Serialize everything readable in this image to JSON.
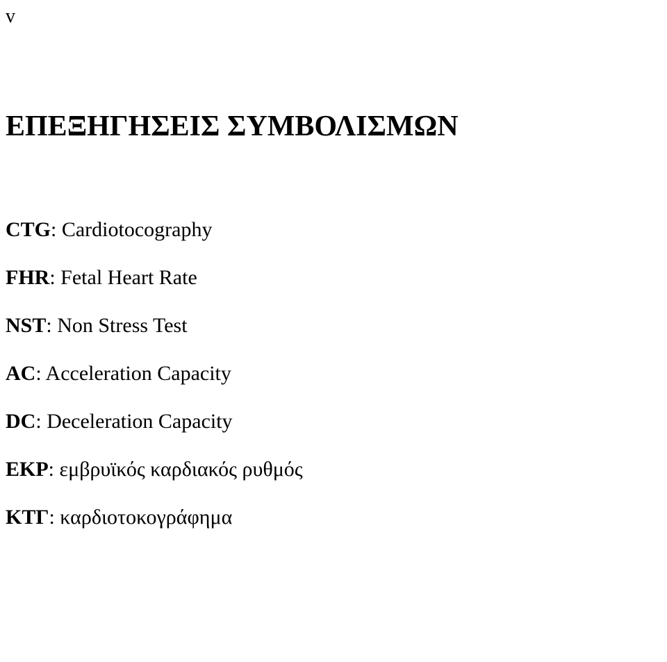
{
  "page": {
    "number": "v",
    "heading": "ΕΠΕΞΗΓΗΣΕΙΣ ΣΥΜΒΟΛΙΣΜΩΝ",
    "definitions": [
      {
        "abbr": "CTG",
        "sep": ": ",
        "desc": "Cardiotocography"
      },
      {
        "abbr": "FHR",
        "sep": ": ",
        "desc": "Fetal Heart Rate"
      },
      {
        "abbr": "NST",
        "sep": ": ",
        "desc": "Non Stress Test"
      },
      {
        "abbr": "AC",
        "sep": ": ",
        "desc": "Acceleration Capacity"
      },
      {
        "abbr": "DC",
        "sep": ": ",
        "desc": "Deceleration Capacity"
      },
      {
        "abbr": "EKP",
        "sep": ": ",
        "desc": "εμβρυϊκός καρδιακός ρυθμός"
      },
      {
        "abbr": "ΚΤΓ",
        "sep": ": ",
        "desc": "καρδιοτοκογράφημα"
      }
    ]
  },
  "style": {
    "background_color": "#ffffff",
    "text_color": "#000000",
    "font_family": "Times New Roman",
    "heading_fontsize_pt": 32,
    "heading_fontweight": "bold",
    "body_fontsize_pt": 22,
    "abbr_fontweight": "bold",
    "line_height": 2.3,
    "page_number_fontsize_pt": 21
  }
}
